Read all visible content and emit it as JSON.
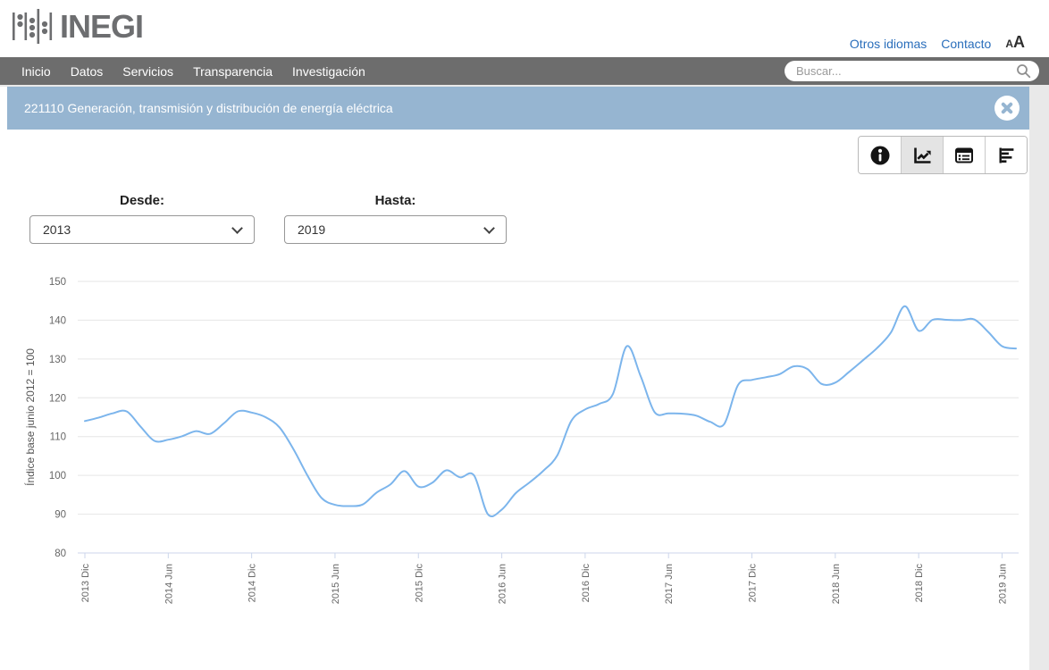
{
  "header": {
    "logo_text": "INEGI",
    "otros_idiomas": "Otros idiomas",
    "contacto": "Contacto",
    "font_small": "A",
    "font_big": "A"
  },
  "navbar": {
    "items": [
      {
        "id": "inicio",
        "label": "Inicio"
      },
      {
        "id": "datos",
        "label": "Datos"
      },
      {
        "id": "servicios",
        "label": "Servicios"
      },
      {
        "id": "transparencia",
        "label": "Transparencia"
      },
      {
        "id": "investigacion",
        "label": "Investigación"
      }
    ],
    "search_placeholder": "Buscar..."
  },
  "banner": {
    "title": "221110 Generación, transmisión y distribución de energía eléctrica"
  },
  "toolbar": {
    "buttons": [
      "info",
      "line-chart",
      "table",
      "bar-chart"
    ],
    "active": "line-chart"
  },
  "filters": {
    "desde_label": "Desde:",
    "desde_value": "2013",
    "hasta_label": "Hasta:",
    "hasta_value": "2019"
  },
  "chart_data": {
    "type": "line",
    "title": "",
    "xlabel": "",
    "ylabel": "Índice base junio 2012 = 100",
    "ylim": [
      80,
      150
    ],
    "y_ticks": [
      80,
      90,
      100,
      110,
      120,
      130,
      140,
      150
    ],
    "grid": true,
    "legend": false,
    "line_color": "#7cb5ec",
    "axis_color": "#ccd6eb",
    "grid_color": "#e6e6e6",
    "label_color": "#666666",
    "x_tick_every": 6,
    "x": [
      "2013 Dic",
      "2014 Ene",
      "2014 Feb",
      "2014 Mar",
      "2014 Abr",
      "2014 May",
      "2014 Jun",
      "2014 Jul",
      "2014 Ago",
      "2014 Sep",
      "2014 Oct",
      "2014 Nov",
      "2014 Dic",
      "2015 Ene",
      "2015 Feb",
      "2015 Mar",
      "2015 Abr",
      "2015 May",
      "2015 Jun",
      "2015 Jul",
      "2015 Ago",
      "2015 Sep",
      "2015 Oct",
      "2015 Nov",
      "2015 Dic",
      "2016 Ene",
      "2016 Feb",
      "2016 Mar",
      "2016 Abr",
      "2016 May",
      "2016 Jun",
      "2016 Jul",
      "2016 Ago",
      "2016 Sep",
      "2016 Oct",
      "2016 Nov",
      "2016 Dic",
      "2017 Ene",
      "2017 Feb",
      "2017 Mar",
      "2017 Abr",
      "2017 May",
      "2017 Jun",
      "2017 Jul",
      "2017 Ago",
      "2017 Sep",
      "2017 Oct",
      "2017 Nov",
      "2017 Dic",
      "2018 Ene",
      "2018 Feb",
      "2018 Mar",
      "2018 Abr",
      "2018 May",
      "2018 Jun",
      "2018 Jul",
      "2018 Ago",
      "2018 Sep",
      "2018 Oct",
      "2018 Nov",
      "2018 Dic",
      "2019 Ene",
      "2019 Feb",
      "2019 Mar",
      "2019 Abr",
      "2019 May",
      "2019 Jun",
      "2019 Jul"
    ],
    "series": [
      {
        "values": [
          114.0,
          114.9,
          116.0,
          116.5,
          112.6,
          108.9,
          109.2,
          110.1,
          111.4,
          110.7,
          113.4,
          116.5,
          116.2,
          115.0,
          112.4,
          106.8,
          100.1,
          94.3,
          92.4,
          92.1,
          92.5,
          95.6,
          97.7,
          101.1,
          97.1,
          98.1,
          101.3,
          99.5,
          100.0,
          90.0,
          91.2,
          95.4,
          98.2,
          101.2,
          105.2,
          114.0,
          117.0,
          118.4,
          121.0,
          133.3,
          125.5,
          116.3,
          116.0,
          115.9,
          115.4,
          113.8,
          113.2,
          123.3,
          124.6,
          125.3,
          126.1,
          128.1,
          127.4,
          123.6,
          123.9,
          126.7,
          129.7,
          132.8,
          136.8,
          143.6,
          137.3,
          140.1,
          140.1,
          140.0,
          140.2,
          137.0,
          133.3,
          132.7
        ]
      }
    ]
  }
}
